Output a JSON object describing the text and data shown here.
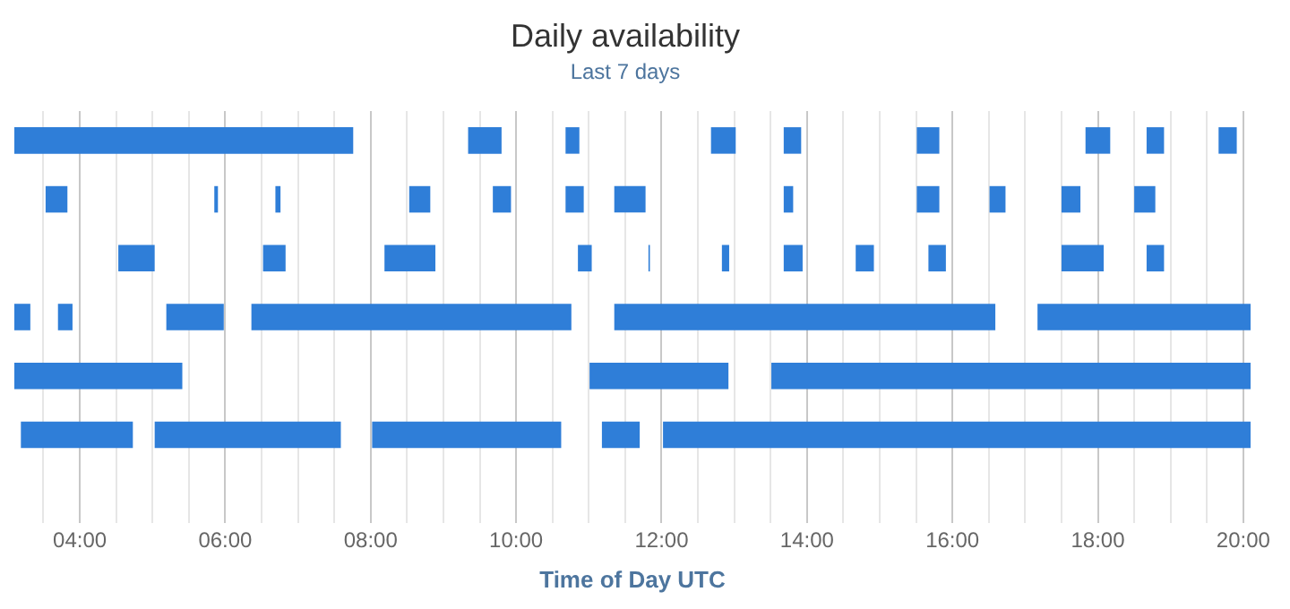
{
  "chart_data": {
    "type": "bar",
    "orientation": "horizontal",
    "title": "Daily availability",
    "subtitle": "Last 7 days",
    "xlabel": "Time of Day UTC",
    "categories": [
      null,
      null,
      null,
      null,
      null,
      null,
      null
    ],
    "xlim": [
      3.1,
      20.1
    ],
    "xticks": [
      {
        "value": 3.5,
        "label": null
      },
      {
        "value": 4,
        "label": "04:00"
      },
      {
        "value": 4.5,
        "label": null
      },
      {
        "value": 5,
        "label": null
      },
      {
        "value": 5.5,
        "label": null
      },
      {
        "value": 6,
        "label": "06:00"
      },
      {
        "value": 6.5,
        "label": null
      },
      {
        "value": 7,
        "label": null
      },
      {
        "value": 7.5,
        "label": null
      },
      {
        "value": 8,
        "label": "08:00"
      },
      {
        "value": 8.5,
        "label": null
      },
      {
        "value": 9,
        "label": null
      },
      {
        "value": 9.5,
        "label": null
      },
      {
        "value": 10,
        "label": "10:00"
      },
      {
        "value": 10.5,
        "label": null
      },
      {
        "value": 11,
        "label": null
      },
      {
        "value": 11.5,
        "label": null
      },
      {
        "value": 12,
        "label": "12:00"
      },
      {
        "value": 12.5,
        "label": null
      },
      {
        "value": 13,
        "label": null
      },
      {
        "value": 13.5,
        "label": null
      },
      {
        "value": 14,
        "label": "14:00"
      },
      {
        "value": 14.5,
        "label": null
      },
      {
        "value": 15,
        "label": null
      },
      {
        "value": 15.5,
        "label": null
      },
      {
        "value": 16,
        "label": "16:00"
      },
      {
        "value": 16.5,
        "label": null
      },
      {
        "value": 17,
        "label": null
      },
      {
        "value": 17.5,
        "label": null
      },
      {
        "value": 18,
        "label": "18:00"
      },
      {
        "value": 18.5,
        "label": null
      },
      {
        "value": 19,
        "label": null
      },
      {
        "value": 19.5,
        "label": null
      },
      {
        "value": 20,
        "label": "20:00"
      }
    ],
    "grid": "x",
    "legend": false,
    "tick_labels": "x",
    "series": [
      {
        "color": "#2f7ed8",
        "base": [
          3.1,
          3.53,
          4.53,
          3.1,
          3.1,
          3.19,
          null
        ],
        "values": [
          4.66,
          0.3,
          0.5,
          0.22,
          2.31,
          1.54,
          null
        ]
      },
      {
        "color": "#2f7ed8",
        "base": [
          9.34,
          5.85,
          6.52,
          3.7,
          11.01,
          5.03,
          null
        ],
        "values": [
          0.46,
          0.05,
          0.31,
          0.2,
          1.91,
          2.56,
          null
        ]
      },
      {
        "color": "#2f7ed8",
        "base": [
          10.68,
          6.69,
          8.19,
          5.19,
          13.51,
          8.02,
          null
        ],
        "values": [
          0.19,
          0.07,
          0.7,
          0.79,
          6.59,
          2.6,
          null
        ]
      },
      {
        "color": "#2f7ed8",
        "base": [
          12.68,
          8.53,
          10.85,
          6.36,
          null,
          11.18,
          null
        ],
        "values": [
          0.34,
          0.29,
          0.19,
          4.4,
          null,
          0.52,
          null
        ]
      },
      {
        "color": "#2f7ed8",
        "base": [
          13.68,
          9.68,
          11.82,
          11.35,
          null,
          12.02,
          null
        ],
        "values": [
          0.24,
          0.25,
          0.02,
          5.24,
          null,
          8.08,
          null
        ]
      },
      {
        "color": "#2f7ed8",
        "base": [
          15.51,
          10.68,
          12.83,
          17.17,
          null,
          null,
          null
        ],
        "values": [
          0.31,
          0.25,
          0.1,
          2.93,
          null,
          null,
          null
        ]
      },
      {
        "color": "#2f7ed8",
        "base": [
          17.83,
          11.35,
          13.68,
          null,
          null,
          null,
          null
        ],
        "values": [
          0.34,
          0.43,
          0.26,
          null,
          null,
          null,
          null
        ]
      },
      {
        "color": "#2f7ed8",
        "base": [
          18.67,
          13.68,
          14.67,
          null,
          null,
          null,
          null
        ],
        "values": [
          0.24,
          0.13,
          0.25,
          null,
          null,
          null,
          null
        ]
      },
      {
        "color": "#2f7ed8",
        "base": [
          19.66,
          15.51,
          15.67,
          null,
          null,
          null,
          null
        ],
        "values": [
          0.25,
          0.31,
          0.24,
          null,
          null,
          null,
          null
        ]
      },
      {
        "color": "#2f7ed8",
        "base": [
          null,
          16.51,
          17.5,
          null,
          null,
          null,
          null
        ],
        "values": [
          null,
          0.22,
          0.58,
          null,
          null,
          null,
          null
        ]
      },
      {
        "color": "#2f7ed8",
        "base": [
          null,
          17.5,
          18.67,
          null,
          null,
          null,
          null
        ],
        "values": [
          null,
          0.26,
          0.24,
          null,
          null,
          null,
          null
        ]
      },
      {
        "color": "#2f7ed8",
        "base": [
          null,
          18.5,
          null,
          null,
          null,
          null,
          null
        ],
        "values": [
          null,
          0.29,
          null,
          null,
          null,
          null,
          null
        ]
      }
    ]
  }
}
